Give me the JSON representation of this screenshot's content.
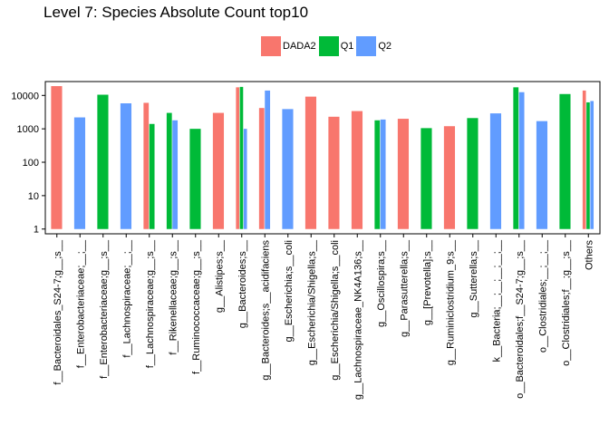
{
  "chart_data": {
    "type": "bar",
    "title": "Level 7: Species Absolute Count top10",
    "xlabel": "",
    "ylabel": "",
    "y_scale": "log10",
    "ylim": [
      0.72,
      26000
    ],
    "y_ticks": [
      1,
      10,
      100,
      1000,
      10000
    ],
    "y_tick_labels": [
      "1",
      "10",
      "100",
      "1000",
      "10000"
    ],
    "grid": false,
    "legend_position": "top",
    "series_order": [
      "DADA2",
      "Q1",
      "Q2"
    ],
    "series_colors": {
      "DADA2": "#F8766D",
      "Q1": "#00BA38",
      "Q2": "#619CFF"
    },
    "categories": [
      "f__Bacteroidales_S24-7;g__;s__",
      "f__Enterobacteriaceae;__;__",
      "f__Enterobacteriaceae;g__;s__",
      "f__Lachnospiraceae;__;__",
      "f__Lachnospiraceae;g__;s__",
      "f__Rikenellaceae;g__;s__",
      "f__Ruminococcaceae;g__;s__",
      "g__Alistipes;s__",
      "g__Bacteroides;s__",
      "g__Bacteroides;s__acidifaciens",
      "g__Escherichia;s__coli",
      "g__Escherichia/Shigella;s__",
      "g__Escherichia/Shigella;s__coli",
      "g__Lachnospiraceae_NK4A136;s__",
      "g__Oscillospira;s__",
      "g__Parasutterella;s__",
      "g__[Prevotella];s__",
      "g__Ruminiclostridium_9;s__",
      "g__Sutterella;s__",
      "k__Bacteria;__;__;__;__;__",
      "o__Bacteroidales;f__S24-7;g__;s__",
      "o__Clostridiales;__;__;__",
      "o__Clostridiales;f__;g__;s__",
      "Others"
    ],
    "x_tick_labels": [
      "f__Bacteroidales_S24-7;g__;s__",
      "f__Enterobacteriaceae;__;__",
      "f__Enterobacteriaceae;g__;s__",
      "f__Lachnospiraceae;__;__",
      "f__Lachnospiraceae;g__;s__",
      "f__Rikenellaceae;g__;s__",
      "f__Ruminococcaceae;g__;s__",
      "g__Alistipes;s__",
      "g__Bacteroides;s__",
      "g__Bacteroides;s__acidifaciens",
      "g__Escherichia;s__coli",
      "g__Escherichia/Shigella;s__",
      "g__Escherichia/Shigella;s__coli",
      "g__Lachnospiraceae_NK4A136;s__",
      "g__Oscillospira;s__",
      "g__Parasutterella;s__",
      "g__[Prevotella];s__",
      "g__Ruminiclostridium_9;s__",
      "g__Sutterella;s__",
      "k__Bacteria;__;__;__;__;__",
      "o__Bacteroidales;f__S24-7;g__;s__",
      "o__Clostridiales;__;__;__",
      "o__Clostridiales;f__;g__;s__",
      "Others"
    ],
    "series": [
      {
        "name": "DADA2",
        "values": [
          19000,
          null,
          null,
          null,
          6000,
          null,
          null,
          3000,
          17500,
          4200,
          null,
          9200,
          2300,
          3400,
          null,
          2000,
          null,
          1200,
          null,
          null,
          null,
          null,
          null,
          14000
        ]
      },
      {
        "name": "Q1",
        "values": [
          null,
          null,
          10500,
          null,
          1400,
          3000,
          1000,
          null,
          18000,
          null,
          null,
          null,
          null,
          null,
          1800,
          null,
          1050,
          null,
          2100,
          null,
          17500,
          null,
          11000,
          6200
        ]
      },
      {
        "name": "Q2",
        "values": [
          null,
          2200,
          null,
          5800,
          null,
          1800,
          null,
          null,
          1000,
          14000,
          3900,
          null,
          null,
          null,
          1900,
          null,
          null,
          null,
          null,
          2900,
          12500,
          1700,
          null,
          6800
        ]
      }
    ]
  }
}
